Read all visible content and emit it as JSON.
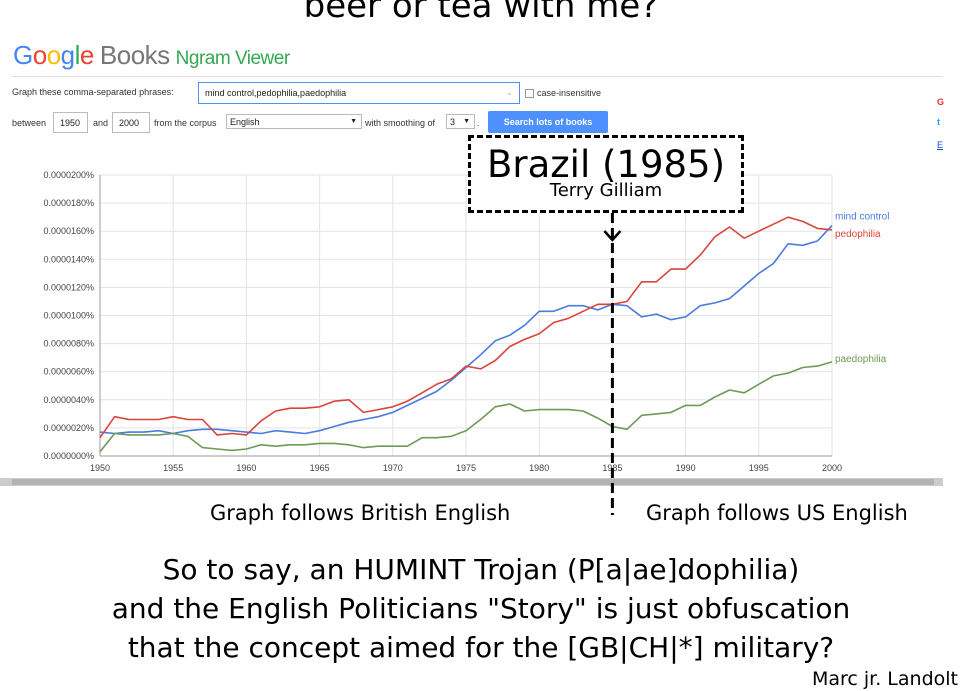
{
  "caption_top": "beer or tea with me?",
  "logo": {
    "google": "Google",
    "books": "Books",
    "ngram": "Ngram Viewer"
  },
  "form": {
    "phrases_label": "Graph these comma-separated phrases:",
    "phrases_value": "mind control,pedophilia,paedophilia",
    "case_insensitive_label": "case-insensitive",
    "between_label": "between",
    "year_start": "1950",
    "and_label": "and",
    "year_end": "2000",
    "corpus_label": "from the corpus",
    "corpus_value": "English",
    "smoothing_label": "with smoothing of",
    "smoothing_value": "3",
    "search_button": "Search lots of books"
  },
  "callout": {
    "title": "Brazil (1985)",
    "subtitle": "Terry Gilliam"
  },
  "notes": {
    "left": "Graph follows British English",
    "right": "Graph follows US English"
  },
  "question": [
    "So to say, an HUMINT Trojan (P[a|ae]dophilia)",
    "and the English Politicians \"Story\" is just obfuscation",
    "that the concept aimed for the [GB|CH|*] military?"
  ],
  "signature": "Marc jr. Landolt",
  "chart_data": {
    "type": "line",
    "xlim": [
      1950,
      2000
    ],
    "ylim": [
      0,
      2e-05
    ],
    "xticks": [
      "1950",
      "1955",
      "1960",
      "1965",
      "1970",
      "1975",
      "1980",
      "1985",
      "1990",
      "1995",
      "2000"
    ],
    "yticks": [
      "0.0000000%",
      "0.0000020%",
      "0.0000040%",
      "0.0000060%",
      "0.0000080%",
      "0.0000100%",
      "0.0000120%",
      "0.0000140%",
      "0.0000160%",
      "0.0000180%",
      "0.0000200%"
    ],
    "grid": true,
    "marker_year": 1985,
    "series": [
      {
        "name": "mind control",
        "color": "#4a7bdd",
        "x": [
          1950,
          1951,
          1952,
          1953,
          1954,
          1955,
          1956,
          1957,
          1958,
          1959,
          1960,
          1961,
          1962,
          1963,
          1964,
          1965,
          1966,
          1967,
          1968,
          1969,
          1970,
          1971,
          1972,
          1973,
          1974,
          1975,
          1976,
          1977,
          1978,
          1979,
          1980,
          1981,
          1982,
          1983,
          1984,
          1985,
          1986,
          1987,
          1988,
          1989,
          1990,
          1991,
          1992,
          1993,
          1994,
          1995,
          1996,
          1997,
          1998,
          1999,
          2000
        ],
        "y": [
          1.7e-06,
          1.6e-06,
          1.7e-06,
          1.7e-06,
          1.8e-06,
          1.6e-06,
          1.8e-06,
          1.9e-06,
          1.9e-06,
          1.8e-06,
          1.7e-06,
          1.6e-06,
          1.8e-06,
          1.7e-06,
          1.6e-06,
          1.8e-06,
          2.1e-06,
          2.4e-06,
          2.6e-06,
          2.8e-06,
          3.1e-06,
          3.6e-06,
          4.1e-06,
          4.6e-06,
          5.4e-06,
          6.3e-06,
          7.2e-06,
          8.2e-06,
          8.6e-06,
          9.3e-06,
          1.03e-05,
          1.03e-05,
          1.07e-05,
          1.07e-05,
          1.04e-05,
          1.08e-05,
          1.07e-05,
          9.9e-06,
          1.01e-05,
          9.7e-06,
          9.9e-06,
          1.07e-05,
          1.09e-05,
          1.12e-05,
          1.21e-05,
          1.3e-05,
          1.37e-05,
          1.51e-05,
          1.5e-05,
          1.53e-05,
          1.64e-05
        ]
      },
      {
        "name": "pedophilia",
        "color": "#d9453a",
        "x": [
          1950,
          1951,
          1952,
          1953,
          1954,
          1955,
          1956,
          1957,
          1958,
          1959,
          1960,
          1961,
          1962,
          1963,
          1964,
          1965,
          1966,
          1967,
          1968,
          1969,
          1970,
          1971,
          1972,
          1973,
          1974,
          1975,
          1976,
          1977,
          1978,
          1979,
          1980,
          1981,
          1982,
          1983,
          1984,
          1985,
          1986,
          1987,
          1988,
          1989,
          1990,
          1991,
          1992,
          1993,
          1994,
          1995,
          1996,
          1997,
          1998,
          1999,
          2000
        ],
        "y": [
          1.3e-06,
          2.8e-06,
          2.6e-06,
          2.6e-06,
          2.6e-06,
          2.8e-06,
          2.6e-06,
          2.6e-06,
          1.5e-06,
          1.6e-06,
          1.5e-06,
          2.5e-06,
          3.2e-06,
          3.4e-06,
          3.4e-06,
          3.5e-06,
          3.9e-06,
          4e-06,
          3.1e-06,
          3.3e-06,
          3.5e-06,
          3.9e-06,
          4.5e-06,
          5.1e-06,
          5.5e-06,
          6.4e-06,
          6.2e-06,
          6.8e-06,
          7.8e-06,
          8.3e-06,
          8.7e-06,
          9.5e-06,
          9.8e-06,
          1.03e-05,
          1.08e-05,
          1.08e-05,
          1.1e-05,
          1.24e-05,
          1.24e-05,
          1.33e-05,
          1.33e-05,
          1.43e-05,
          1.56e-05,
          1.63e-05,
          1.55e-05,
          1.6e-05,
          1.65e-05,
          1.7e-05,
          1.67e-05,
          1.62e-05,
          1.61e-05
        ]
      },
      {
        "name": "paedophilia",
        "color": "#6e9a57",
        "x": [
          1950,
          1951,
          1952,
          1953,
          1954,
          1955,
          1956,
          1957,
          1958,
          1959,
          1960,
          1961,
          1962,
          1963,
          1964,
          1965,
          1966,
          1967,
          1968,
          1969,
          1970,
          1971,
          1972,
          1973,
          1974,
          1975,
          1976,
          1977,
          1978,
          1979,
          1980,
          1981,
          1982,
          1983,
          1984,
          1985,
          1986,
          1987,
          1988,
          1989,
          1990,
          1991,
          1992,
          1993,
          1994,
          1995,
          1996,
          1997,
          1998,
          1999,
          2000
        ],
        "y": [
          3e-07,
          1.6e-06,
          1.5e-06,
          1.5e-06,
          1.5e-06,
          1.6e-06,
          1.4e-06,
          6e-07,
          5e-07,
          4e-07,
          5e-07,
          8e-07,
          7e-07,
          8e-07,
          8e-07,
          9e-07,
          9e-07,
          8e-07,
          6e-07,
          7e-07,
          7e-07,
          7e-07,
          1.3e-06,
          1.3e-06,
          1.4e-06,
          1.8e-06,
          2.6e-06,
          3.5e-06,
          3.7e-06,
          3.2e-06,
          3.3e-06,
          3.3e-06,
          3.3e-06,
          3.2e-06,
          2.7e-06,
          2.1e-06,
          1.9e-06,
          2.9e-06,
          3e-06,
          3.1e-06,
          3.6e-06,
          3.6e-06,
          4.2e-06,
          4.7e-06,
          4.5e-06,
          5.1e-06,
          5.7e-06,
          5.9e-06,
          6.3e-06,
          6.4e-06,
          6.7e-06
        ]
      }
    ]
  }
}
